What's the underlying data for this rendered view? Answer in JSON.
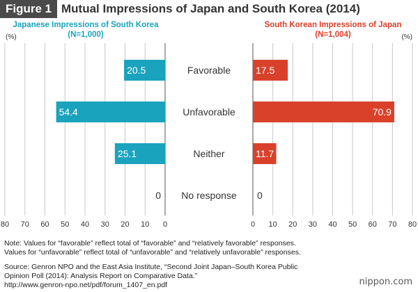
{
  "figure": {
    "label": "Figure 1",
    "title": "Mutual Impressions of Japan and South Korea (2014)"
  },
  "chart_data": {
    "type": "bar",
    "categories": [
      "Favorable",
      "Unfavorable",
      "Neither",
      "No response"
    ],
    "unit_label": "(%)",
    "xlim": [
      0,
      80
    ],
    "ticks": [
      "80",
      "70",
      "60",
      "50",
      "40",
      "30",
      "20",
      "10",
      "0"
    ],
    "ticks_right": [
      "0",
      "10",
      "20",
      "30",
      "40",
      "50",
      "60",
      "70",
      "80"
    ],
    "grid": true,
    "series": [
      {
        "name": "Japanese Impressions of South Korea",
        "sample": "(N=1,000)",
        "values": [
          20.5,
          54.4,
          25.1,
          0
        ],
        "labels": [
          "20.5",
          "54.4",
          "25.1",
          "0"
        ],
        "color": "#1aa3bd",
        "direction": "left"
      },
      {
        "name": "South Korean Impressions of Japan",
        "sample": "(N=1,004)",
        "values": [
          17.5,
          70.9,
          11.7,
          0
        ],
        "labels": [
          "17.5",
          "70.9",
          "11.7",
          "0"
        ],
        "color": "#d9412b",
        "direction": "right"
      }
    ]
  },
  "notes": {
    "note1": "Note: Values for “favorable” reflect total of “favorable” and “relatively favorable” responses.",
    "note2": "Values for “unfavorable” reflect total of “unfavorable” and “relatively unfavorable” responses.",
    "source1": "Source: Genron NPO and the East Asia Institute, “Second Joint Japan–South Korea Public",
    "source2": "Opinion Poll (2014): Analysis Report on Comparative Data.”",
    "source3": "http://www.genron-npo.net/pdf/forum_1407_en.pdf"
  },
  "brand": "nippon.com"
}
